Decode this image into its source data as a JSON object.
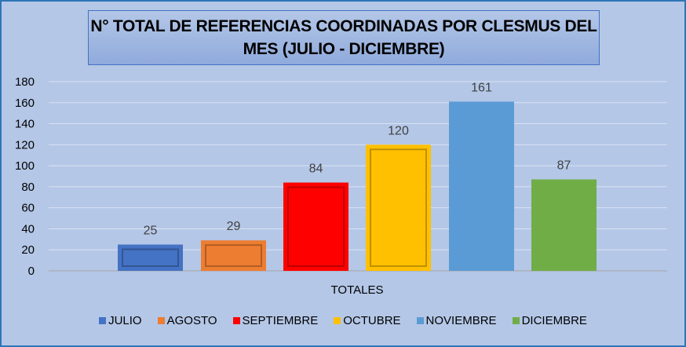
{
  "chart_data": {
    "type": "bar",
    "title": "N° TOTAL DE REFERENCIAS COORDINADAS POR CLESMUS DEL MES (JULIO - DICIEMBRE)",
    "xlabel": "TOTALES",
    "ylabel": "",
    "ylim": [
      0,
      180
    ],
    "yticks": [
      0,
      20,
      40,
      60,
      80,
      100,
      120,
      140,
      160,
      180
    ],
    "grid": true,
    "legend_position": "bottom",
    "categories": [
      "TOTALES"
    ],
    "series": [
      {
        "name": "JULIO",
        "values": [
          25
        ],
        "color": "#4472c4"
      },
      {
        "name": "AGOSTO",
        "values": [
          29
        ],
        "color": "#ed7d31"
      },
      {
        "name": "SEPTIEMBRE",
        "values": [
          84
        ],
        "color": "#ff0000"
      },
      {
        "name": "OCTUBRE",
        "values": [
          120
        ],
        "color": "#ffc000"
      },
      {
        "name": "NOVIEMBRE",
        "values": [
          161
        ],
        "color": "#5b9bd5"
      },
      {
        "name": "DICIEMBRE",
        "values": [
          87
        ],
        "color": "#70ad47"
      }
    ]
  }
}
